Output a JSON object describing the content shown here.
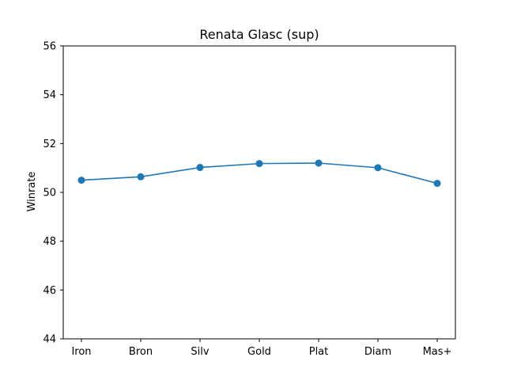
{
  "chart_data": {
    "type": "line",
    "title": "Renata Glasc (sup)",
    "xlabel": "",
    "ylabel": "Winrate",
    "categories": [
      "Iron",
      "Bron",
      "Silv",
      "Gold",
      "Plat",
      "Diam",
      "Mas+"
    ],
    "series": [
      {
        "values": [
          50.5,
          50.64,
          51.02,
          51.18,
          51.2,
          51.01,
          50.37
        ],
        "color": "#1f77b4",
        "marker": "circle"
      }
    ],
    "ylim": [
      44,
      56
    ],
    "yticks": [
      44,
      46,
      48,
      50,
      52,
      54,
      56
    ],
    "grid": false,
    "legend": "none"
  }
}
